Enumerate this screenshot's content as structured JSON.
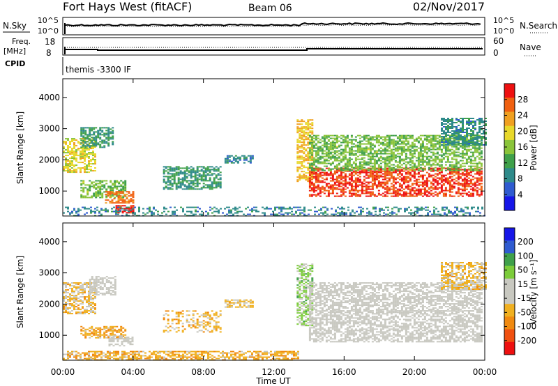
{
  "header": {
    "station": "Fort Hays West (fitACF)",
    "beam": "Beam 06",
    "date": "02/Nov/2017"
  },
  "noise_panel": {
    "left_label": "N.Sky",
    "right_label": "N.Search",
    "left_ticks": [
      "10^5",
      "10^0"
    ],
    "right_ticks": [
      "10^5",
      "10^0"
    ]
  },
  "freq_panel": {
    "left_label_top": "Freq.",
    "left_label_unit": "[MHz]",
    "left_ticks": [
      "18",
      "8"
    ],
    "right_label": "Nave",
    "right_ticks": [
      "60",
      "0"
    ]
  },
  "cpid_panel": {
    "label": "CPID",
    "value": "themis -3300 IF"
  },
  "chart_data": [
    {
      "type": "heatmap",
      "title": "",
      "xlabel": "Time UT",
      "ylabel": "Slant Range [km]",
      "xlim": [
        0,
        24
      ],
      "ylim": [
        200,
        4600
      ],
      "x_ticks": [
        "00:00",
        "04:00",
        "08:00",
        "12:00",
        "16:00",
        "20:00",
        "00:00"
      ],
      "y_ticks": [
        "1000",
        "2000",
        "3000",
        "4000"
      ],
      "colorbar": {
        "label": "Power [dB]",
        "ticks": [
          "28",
          "24",
          "20",
          "16",
          "12",
          "8",
          "4"
        ],
        "range": [
          0,
          30
        ],
        "colors": [
          "#1616e8",
          "#2f5bd0",
          "#2e8a8a",
          "#3fa04a",
          "#8ac43a",
          "#e8d82a",
          "#f0a020",
          "#f06010",
          "#ee1010"
        ]
      },
      "regions": [
        {
          "x": [
            0.0,
            1.8
          ],
          "y": [
            1600,
            2700
          ],
          "value": 18
        },
        {
          "x": [
            1.0,
            2.8
          ],
          "y": [
            2400,
            3050
          ],
          "value": 10
        },
        {
          "x": [
            1.0,
            3.6
          ],
          "y": [
            780,
            1350
          ],
          "value": 14
        },
        {
          "x": [
            2.4,
            4.0
          ],
          "y": [
            600,
            1000
          ],
          "value": 24
        },
        {
          "x": [
            3.0,
            4.0
          ],
          "y": [
            300,
            550
          ],
          "value": 28
        },
        {
          "x": [
            0.0,
            24.0
          ],
          "y": [
            200,
            500
          ],
          "value": 8
        },
        {
          "x": [
            5.7,
            9.0
          ],
          "y": [
            1050,
            1800
          ],
          "value": 10
        },
        {
          "x": [
            9.2,
            10.8
          ],
          "y": [
            1900,
            2150
          ],
          "value": 8
        },
        {
          "x": [
            13.3,
            14.2
          ],
          "y": [
            1300,
            3300
          ],
          "value": 20
        },
        {
          "x": [
            14.0,
            23.8
          ],
          "y": [
            850,
            1750
          ],
          "value": 27
        },
        {
          "x": [
            14.0,
            23.8
          ],
          "y": [
            1650,
            2800
          ],
          "value": 14
        },
        {
          "x": [
            21.5,
            24.0
          ],
          "y": [
            2500,
            3350
          ],
          "value": 9
        }
      ]
    },
    {
      "type": "heatmap",
      "title": "",
      "xlabel": "Time UT",
      "ylabel": "Slant Range [km]",
      "xlim": [
        0,
        24
      ],
      "ylim": [
        200,
        4600
      ],
      "x_ticks": [
        "00:00",
        "04:00",
        "08:00",
        "12:00",
        "16:00",
        "20:00",
        "00:00"
      ],
      "y_ticks": [
        "1000",
        "2000",
        "3000",
        "4000"
      ],
      "colorbar": {
        "label": "Velocity [m s⁻¹]",
        "ticks": [
          "200",
          "100",
          "50",
          "15",
          "-15",
          "-50",
          "-100",
          "-200"
        ],
        "range": [
          -250,
          250
        ],
        "colors": [
          "#ee1010",
          "#f05010",
          "#f08a10",
          "#f0b020",
          "#c8c8c0",
          "#c8c8c0",
          "#7ccc3a",
          "#3fa04a",
          "#2f5bd0",
          "#1616e8"
        ]
      },
      "regions": [
        {
          "x": [
            0.0,
            1.8
          ],
          "y": [
            1700,
            2700
          ],
          "value": -60
        },
        {
          "x": [
            1.5,
            3.0
          ],
          "y": [
            2300,
            2900
          ],
          "value": 0
        },
        {
          "x": [
            1.0,
            3.6
          ],
          "y": [
            900,
            1300
          ],
          "value": -90
        },
        {
          "x": [
            2.6,
            4.0
          ],
          "y": [
            650,
            1000
          ],
          "value": 0
        },
        {
          "x": [
            0.0,
            13.4
          ],
          "y": [
            200,
            500
          ],
          "value": -80
        },
        {
          "x": [
            5.7,
            9.0
          ],
          "y": [
            1100,
            1800
          ],
          "value": -70
        },
        {
          "x": [
            9.2,
            10.8
          ],
          "y": [
            1900,
            2150
          ],
          "value": -60
        },
        {
          "x": [
            13.3,
            14.2
          ],
          "y": [
            1300,
            3300
          ],
          "value": 60
        },
        {
          "x": [
            14.0,
            23.8
          ],
          "y": [
            800,
            1800
          ],
          "value": 0
        },
        {
          "x": [
            14.0,
            23.8
          ],
          "y": [
            1800,
            2700
          ],
          "value": 0
        },
        {
          "x": [
            21.5,
            24.0
          ],
          "y": [
            2500,
            3350
          ],
          "value": -60
        }
      ]
    }
  ]
}
